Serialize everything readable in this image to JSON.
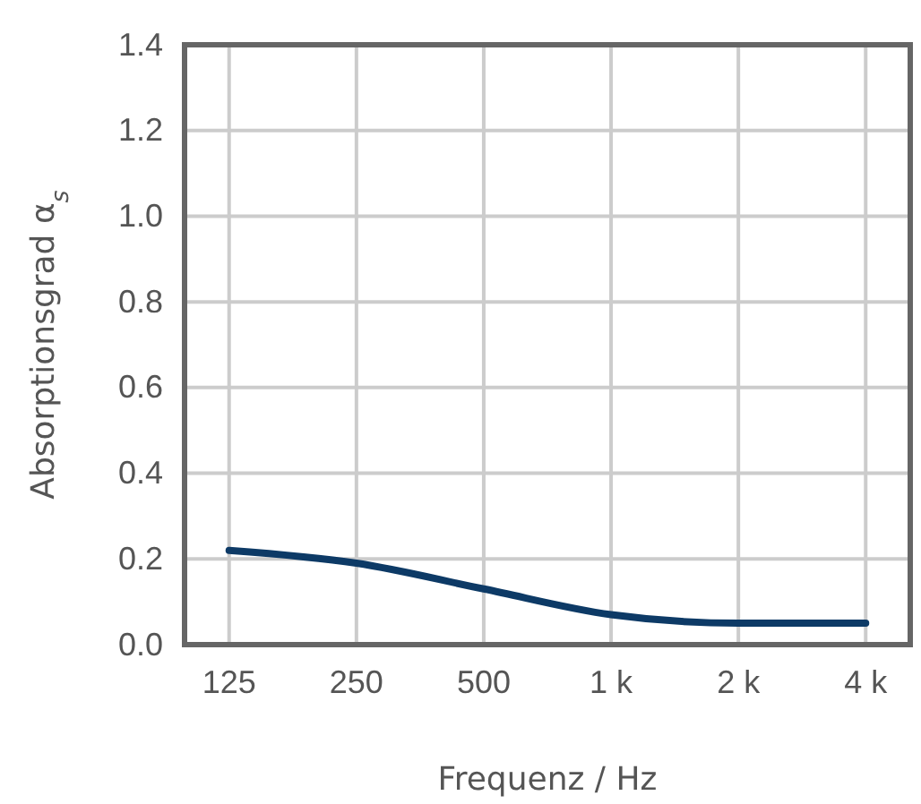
{
  "chart_data": {
    "type": "line",
    "xlabel": "Frequenz / Hz",
    "ylabel": "Absorptionsgrad  α$_{s}$",
    "categories": [
      "125",
      "250",
      "500",
      "1 k",
      "2 k",
      "4 k"
    ],
    "series": [
      {
        "color": "#0d3a66",
        "values": [
          0.22,
          0.19,
          0.13,
          0.07,
          0.05,
          0.05
        ]
      }
    ],
    "ylim": [
      0,
      1.4
    ],
    "yticks": [
      {
        "value": 0,
        "label": "0.0"
      },
      {
        "value": 0.2,
        "label": "0.2"
      },
      {
        "value": 0.4,
        "label": "0.4"
      },
      {
        "value": 0.6,
        "label": "0.6"
      },
      {
        "value": 0.8,
        "label": "0.8"
      },
      {
        "value": 1,
        "label": "1.0"
      },
      {
        "value": 1.2,
        "label": "1.2"
      },
      {
        "value": 1.4,
        "label": "1.4"
      }
    ],
    "grid": true,
    "marker": "none",
    "line_style": "solid"
  }
}
